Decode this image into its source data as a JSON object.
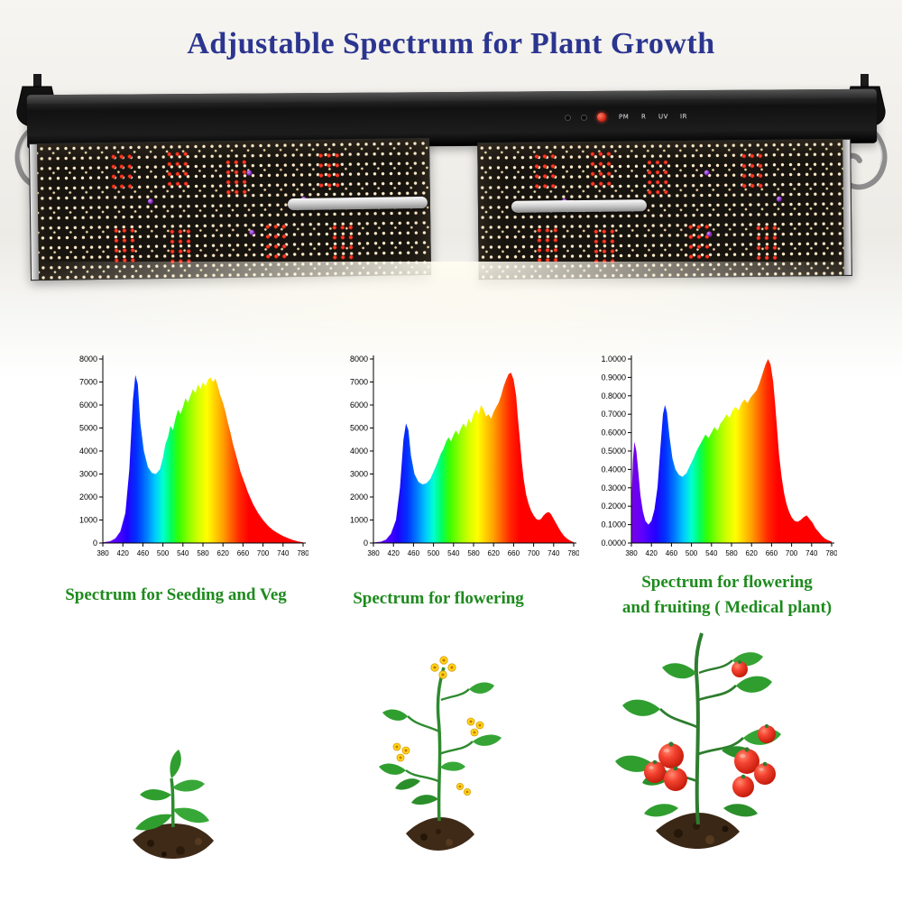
{
  "title": "Adjustable Spectrum for Plant Growth",
  "colors": {
    "title_text": "#2b3590",
    "caption_text": "#1e8a1e"
  },
  "fixture": {
    "description": "LED grow light bar with two quantum LED boards, rope-ratchet hangers and spectrum channel controls",
    "channel_labels": [
      "PM",
      "R",
      "UV",
      "IR"
    ]
  },
  "illustrations": [
    "seedling-plant",
    "flowering-plant",
    "fruiting-tomato-plant"
  ],
  "chart_data": [
    {
      "type": "area",
      "caption": "Spectrum for Seeding and Veg",
      "xlim": [
        380,
        780
      ],
      "ylim": [
        0,
        8000
      ],
      "x_ticks": [
        380,
        420,
        460,
        500,
        540,
        580,
        620,
        660,
        700,
        740,
        780
      ],
      "y_tick_values": [
        0,
        1000,
        2000,
        3000,
        4000,
        5000,
        6000,
        7000,
        8000
      ],
      "y_tick_labels": [
        "0",
        "1000",
        "2000",
        "3000",
        "4000",
        "5000",
        "6000",
        "7000",
        "8000"
      ],
      "points": [
        [
          380,
          30
        ],
        [
          395,
          80
        ],
        [
          405,
          200
        ],
        [
          415,
          500
        ],
        [
          425,
          1300
        ],
        [
          433,
          3200
        ],
        [
          440,
          6200
        ],
        [
          445,
          7300
        ],
        [
          450,
          6900
        ],
        [
          455,
          5200
        ],
        [
          462,
          4000
        ],
        [
          470,
          3300
        ],
        [
          478,
          3050
        ],
        [
          486,
          3000
        ],
        [
          494,
          3200
        ],
        [
          500,
          3700
        ],
        [
          505,
          4300
        ],
        [
          510,
          4600
        ],
        [
          515,
          5100
        ],
        [
          520,
          4900
        ],
        [
          525,
          5400
        ],
        [
          530,
          5800
        ],
        [
          535,
          5600
        ],
        [
          540,
          5900
        ],
        [
          545,
          6300
        ],
        [
          550,
          6100
        ],
        [
          555,
          6400
        ],
        [
          560,
          6700
        ],
        [
          565,
          6500
        ],
        [
          570,
          6900
        ],
        [
          575,
          6700
        ],
        [
          580,
          7000
        ],
        [
          585,
          6800
        ],
        [
          590,
          7100
        ],
        [
          595,
          7200
        ],
        [
          600,
          7000
        ],
        [
          605,
          7150
        ],
        [
          610,
          6800
        ],
        [
          615,
          6400
        ],
        [
          620,
          6100
        ],
        [
          625,
          5700
        ],
        [
          630,
          5200
        ],
        [
          635,
          4800
        ],
        [
          640,
          4300
        ],
        [
          645,
          3900
        ],
        [
          650,
          3500
        ],
        [
          655,
          3100
        ],
        [
          660,
          2800
        ],
        [
          665,
          2500
        ],
        [
          670,
          2200
        ],
        [
          675,
          1950
        ],
        [
          680,
          1700
        ],
        [
          690,
          1300
        ],
        [
          700,
          1000
        ],
        [
          710,
          750
        ],
        [
          720,
          560
        ],
        [
          730,
          420
        ],
        [
          740,
          300
        ],
        [
          750,
          210
        ],
        [
          760,
          130
        ],
        [
          770,
          70
        ],
        [
          780,
          30
        ]
      ]
    },
    {
      "type": "area",
      "caption": "Spectrum for flowering",
      "xlim": [
        380,
        780
      ],
      "ylim": [
        0,
        8000
      ],
      "x_ticks": [
        380,
        420,
        460,
        500,
        540,
        580,
        620,
        660,
        700,
        740,
        780
      ],
      "y_tick_values": [
        0,
        1000,
        2000,
        3000,
        4000,
        5000,
        6000,
        7000,
        8000
      ],
      "y_tick_labels": [
        "0",
        "1000",
        "2000",
        "3000",
        "4000",
        "5000",
        "6000",
        "7000",
        "8000"
      ],
      "points": [
        [
          380,
          25
        ],
        [
          395,
          60
        ],
        [
          405,
          150
        ],
        [
          415,
          400
        ],
        [
          425,
          1000
        ],
        [
          433,
          2400
        ],
        [
          440,
          4500
        ],
        [
          445,
          5200
        ],
        [
          450,
          4900
        ],
        [
          455,
          3800
        ],
        [
          462,
          3000
        ],
        [
          470,
          2650
        ],
        [
          478,
          2550
        ],
        [
          486,
          2600
        ],
        [
          494,
          2800
        ],
        [
          500,
          3100
        ],
        [
          508,
          3500
        ],
        [
          515,
          3900
        ],
        [
          520,
          4100
        ],
        [
          525,
          4400
        ],
        [
          530,
          4600
        ],
        [
          535,
          4400
        ],
        [
          540,
          4700
        ],
        [
          545,
          4900
        ],
        [
          550,
          4700
        ],
        [
          555,
          5000
        ],
        [
          560,
          5200
        ],
        [
          565,
          5000
        ],
        [
          570,
          5400
        ],
        [
          575,
          5200
        ],
        [
          580,
          5600
        ],
        [
          585,
          5800
        ],
        [
          590,
          5600
        ],
        [
          595,
          6000
        ],
        [
          600,
          5800
        ],
        [
          605,
          5500
        ],
        [
          610,
          5600
        ],
        [
          615,
          5400
        ],
        [
          620,
          5700
        ],
        [
          625,
          5900
        ],
        [
          630,
          6100
        ],
        [
          635,
          6400
        ],
        [
          640,
          6800
        ],
        [
          645,
          7100
        ],
        [
          650,
          7350
        ],
        [
          655,
          7400
        ],
        [
          660,
          7100
        ],
        [
          665,
          6400
        ],
        [
          668,
          5600
        ],
        [
          672,
          4600
        ],
        [
          676,
          3600
        ],
        [
          680,
          2800
        ],
        [
          685,
          2100
        ],
        [
          690,
          1700
        ],
        [
          695,
          1400
        ],
        [
          700,
          1200
        ],
        [
          705,
          1050
        ],
        [
          710,
          1000
        ],
        [
          715,
          1050
        ],
        [
          720,
          1200
        ],
        [
          725,
          1300
        ],
        [
          730,
          1350
        ],
        [
          735,
          1250
        ],
        [
          740,
          1050
        ],
        [
          745,
          850
        ],
        [
          750,
          650
        ],
        [
          755,
          480
        ],
        [
          760,
          330
        ],
        [
          765,
          220
        ],
        [
          770,
          140
        ],
        [
          775,
          80
        ],
        [
          780,
          40
        ]
      ]
    },
    {
      "type": "area",
      "caption": "Spectrum for flowering\nand fruiting ( Medical plant)",
      "xlim": [
        380,
        780
      ],
      "ylim": [
        0,
        1
      ],
      "x_ticks": [
        380,
        420,
        460,
        500,
        540,
        580,
        620,
        660,
        700,
        740,
        780
      ],
      "y_tick_values": [
        0,
        0.1,
        0.2,
        0.3,
        0.4,
        0.5,
        0.6,
        0.7,
        0.8,
        0.9,
        1.0
      ],
      "y_tick_labels": [
        "0.0000",
        "0.1000",
        "0.2000",
        "0.3000",
        "0.4000",
        "0.5000",
        "0.6000",
        "0.7000",
        "0.8000",
        "0.9000",
        "1.0000"
      ],
      "points": [
        [
          380,
          0.2
        ],
        [
          383,
          0.45
        ],
        [
          386,
          0.55
        ],
        [
          390,
          0.5
        ],
        [
          394,
          0.38
        ],
        [
          398,
          0.26
        ],
        [
          403,
          0.17
        ],
        [
          408,
          0.12
        ],
        [
          414,
          0.1
        ],
        [
          420,
          0.12
        ],
        [
          426,
          0.18
        ],
        [
          432,
          0.3
        ],
        [
          438,
          0.52
        ],
        [
          443,
          0.7
        ],
        [
          447,
          0.75
        ],
        [
          451,
          0.71
        ],
        [
          456,
          0.58
        ],
        [
          462,
          0.46
        ],
        [
          468,
          0.4
        ],
        [
          475,
          0.37
        ],
        [
          482,
          0.36
        ],
        [
          490,
          0.38
        ],
        [
          497,
          0.42
        ],
        [
          504,
          0.46
        ],
        [
          510,
          0.5
        ],
        [
          516,
          0.53
        ],
        [
          522,
          0.56
        ],
        [
          528,
          0.59
        ],
        [
          534,
          0.57
        ],
        [
          540,
          0.6
        ],
        [
          546,
          0.63
        ],
        [
          552,
          0.61
        ],
        [
          558,
          0.65
        ],
        [
          564,
          0.67
        ],
        [
          570,
          0.7
        ],
        [
          576,
          0.68
        ],
        [
          582,
          0.72
        ],
        [
          588,
          0.74
        ],
        [
          594,
          0.72
        ],
        [
          600,
          0.76
        ],
        [
          606,
          0.78
        ],
        [
          612,
          0.76
        ],
        [
          618,
          0.79
        ],
        [
          624,
          0.81
        ],
        [
          630,
          0.83
        ],
        [
          636,
          0.87
        ],
        [
          642,
          0.92
        ],
        [
          648,
          0.97
        ],
        [
          653,
          1.0
        ],
        [
          658,
          0.97
        ],
        [
          663,
          0.88
        ],
        [
          667,
          0.76
        ],
        [
          671,
          0.62
        ],
        [
          675,
          0.48
        ],
        [
          680,
          0.36
        ],
        [
          685,
          0.27
        ],
        [
          690,
          0.21
        ],
        [
          695,
          0.17
        ],
        [
          700,
          0.14
        ],
        [
          706,
          0.12
        ],
        [
          712,
          0.115
        ],
        [
          718,
          0.125
        ],
        [
          724,
          0.14
        ],
        [
          730,
          0.15
        ],
        [
          736,
          0.13
        ],
        [
          742,
          0.11
        ],
        [
          748,
          0.08
        ],
        [
          754,
          0.06
        ],
        [
          760,
          0.04
        ],
        [
          766,
          0.025
        ],
        [
          772,
          0.015
        ],
        [
          780,
          0.008
        ]
      ]
    }
  ]
}
